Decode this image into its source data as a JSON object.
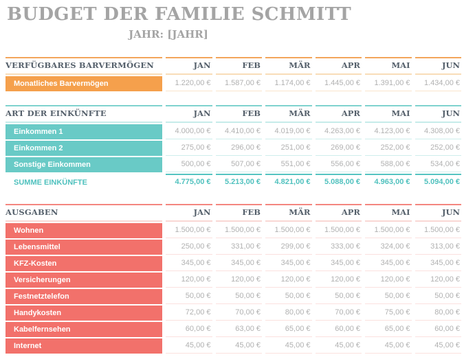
{
  "header": {
    "title": "BUDGET DER FAMILIE SCHMITT",
    "subtitle": "JAHR: [JAHR]"
  },
  "months": [
    "JAN",
    "FEB",
    "MÄR",
    "APR",
    "MAI",
    "JUN"
  ],
  "colors": {
    "title": "#A4A4A4",
    "header_text": "#55606B",
    "value_text": "#B1B1B1",
    "row_label_text": "#FFFFFF",
    "background": "#FFFFFF"
  },
  "palettes": {
    "orange": {
      "bar": "#F5A04C",
      "line_top": "#F3A55B",
      "line_light": "#F9DCB8",
      "row_sep": "#FAE5CC",
      "strong": "#F5A04C",
      "total_text": "#F5A04C"
    },
    "teal": {
      "bar": "#69CAC6",
      "line_top": "#7ED2CE",
      "line_light": "#C6EBE9",
      "row_sep": "#CDEEEC",
      "strong": "#54C4C1",
      "total_text": "#4FC1BE"
    },
    "coral": {
      "bar": "#F2716B",
      "line_top": "#F4867F",
      "line_light": "#F9D7D4",
      "row_sep": "#FBE0DE",
      "strong": "#F2716B",
      "total_text": "#F2716B"
    }
  },
  "sections": [
    {
      "id": "barvermoegen",
      "title": "VERFÜGBARES BARVERMÖGEN",
      "accent": "orange",
      "rows": [
        {
          "label": "Monatliches Barvermögen",
          "values": [
            "1.220,00 €",
            "1.587,00 €",
            "1.174,00 €",
            "1.445,00 €",
            "1.391,00 €",
            "1.434,00 €"
          ]
        }
      ]
    },
    {
      "id": "einkuenfte",
      "title": "ART DER EINKÜNFTE",
      "accent": "teal",
      "rows": [
        {
          "label": "Einkommen 1",
          "values": [
            "4.000,00 €",
            "4.410,00 €",
            "4.019,00 €",
            "4.263,00 €",
            "4.123,00 €",
            "4.308,00 €"
          ]
        },
        {
          "label": "Einkommen 2",
          "values": [
            "275,00 €",
            "296,00 €",
            "251,00 €",
            "269,00 €",
            "252,00 €",
            "252,00 €"
          ]
        },
        {
          "label": "Sonstige Einkommen",
          "values": [
            "500,00 €",
            "507,00 €",
            "551,00 €",
            "556,00 €",
            "588,00 €",
            "534,00 €"
          ]
        }
      ],
      "total": {
        "label": "SUMME EINKÜNFTE",
        "values": [
          "4.775,00 €",
          "5.213,00 €",
          "4.821,00 €",
          "5.088,00 €",
          "4.963,00 €",
          "5.094,00 €"
        ]
      }
    },
    {
      "id": "ausgaben",
      "title": "AUSGABEN",
      "accent": "coral",
      "rows": [
        {
          "label": "Wohnen",
          "values": [
            "1.500,00 €",
            "1.500,00 €",
            "1.500,00 €",
            "1.500,00 €",
            "1.500,00 €",
            "1.500,00 €"
          ]
        },
        {
          "label": "Lebensmittel",
          "values": [
            "250,00 €",
            "331,00 €",
            "299,00 €",
            "333,00 €",
            "324,00 €",
            "313,00 €"
          ]
        },
        {
          "label": "KFZ-Kosten",
          "values": [
            "345,00 €",
            "345,00 €",
            "345,00 €",
            "345,00 €",
            "345,00 €",
            "345,00 €"
          ]
        },
        {
          "label": "Versicherungen",
          "values": [
            "120,00 €",
            "120,00 €",
            "120,00 €",
            "120,00 €",
            "120,00 €",
            "120,00 €"
          ]
        },
        {
          "label": "Festnetztelefon",
          "values": [
            "50,00 €",
            "50,00 €",
            "50,00 €",
            "50,00 €",
            "50,00 €",
            "50,00 €"
          ]
        },
        {
          "label": "Handykosten",
          "values": [
            "72,00 €",
            "70,00 €",
            "80,00 €",
            "70,00 €",
            "75,00 €",
            "80,00 €"
          ]
        },
        {
          "label": "Kabelfernsehen",
          "values": [
            "60,00 €",
            "63,00 €",
            "65,00 €",
            "60,00 €",
            "65,00 €",
            "60,00 €"
          ]
        },
        {
          "label": "Internet",
          "values": [
            "45,00 €",
            "45,00 €",
            "45,00 €",
            "45,00 €",
            "45,00 €",
            "45,00 €"
          ]
        }
      ]
    }
  ]
}
